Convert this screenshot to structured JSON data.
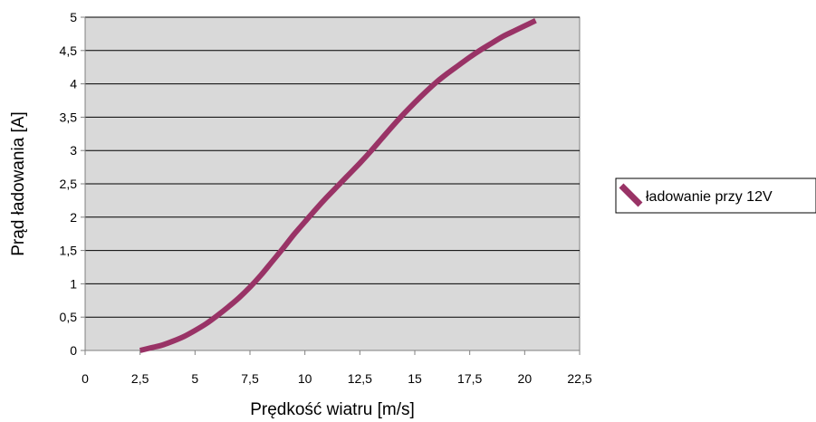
{
  "chart_data": {
    "type": "line",
    "xlabel": "Prędkość wiatru [m/s]",
    "ylabel": "Prąd ładowania [A]",
    "xlim": [
      0,
      22.5
    ],
    "ylim": [
      0,
      5
    ],
    "x_ticks": [
      "0",
      "2,5",
      "5",
      "7,5",
      "10",
      "12,5",
      "15",
      "17,5",
      "20",
      "22,5"
    ],
    "y_ticks": [
      "0",
      "0,5",
      "1",
      "1,5",
      "2",
      "2,5",
      "3",
      "3,5",
      "4",
      "4,5",
      "5"
    ],
    "grid": "horizontal",
    "plot_background": "#d9d9d9",
    "legend_position": "right",
    "series": [
      {
        "name": "ładowanie przy 12V",
        "color": "#993366",
        "x": [
          2.5,
          3.0,
          3.5,
          4.0,
          4.5,
          5.0,
          5.5,
          6.0,
          6.5,
          7.0,
          7.5,
          8.0,
          8.5,
          9.0,
          9.5,
          10.0,
          10.5,
          11.0,
          11.5,
          12.0,
          12.5,
          13.0,
          13.5,
          14.0,
          14.5,
          15.0,
          15.5,
          16.0,
          16.5,
          17.0,
          17.5,
          18.0,
          18.5,
          19.0,
          19.5,
          20.0,
          20.5
        ],
        "y": [
          0.0,
          0.04,
          0.08,
          0.14,
          0.21,
          0.3,
          0.4,
          0.52,
          0.65,
          0.79,
          0.95,
          1.13,
          1.33,
          1.53,
          1.74,
          1.93,
          2.12,
          2.3,
          2.47,
          2.64,
          2.81,
          2.99,
          3.18,
          3.37,
          3.55,
          3.72,
          3.88,
          4.03,
          4.16,
          4.28,
          4.4,
          4.51,
          4.61,
          4.71,
          4.79,
          4.87,
          4.95
        ]
      }
    ]
  }
}
